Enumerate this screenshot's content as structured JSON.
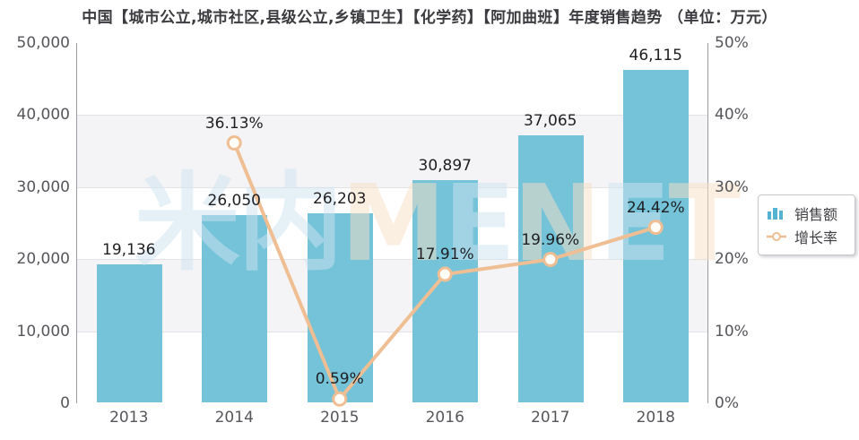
{
  "title": "中国【城市公立,城市社区,县级公立,乡镇卫生】【化学药】【阿加曲班】年度销售趋势 （单位：万元）",
  "colors": {
    "bar": "#74c3d9",
    "line": "#efbe93",
    "marker_fill": "#fffdf8",
    "band": "#f4f4f6",
    "grid_line": "#e3e3e7",
    "plot_border": "#9a9ba3",
    "watermark_blue": "#cfe3f1",
    "watermark_orange": "#f9e0c6",
    "legend_icon_blue": "#54b2d3"
  },
  "legend": {
    "items": [
      {
        "label": "销售额",
        "type": "bar"
      },
      {
        "label": "增长率",
        "type": "line"
      }
    ]
  },
  "chart_data": {
    "type": "bar+line combo",
    "title": "中国【城市公立,城市社区,县级公立,乡镇卫生】【化学药】【阿加曲班】年度销售趋势 （单位：万元）",
    "categories": [
      "2013",
      "2014",
      "2015",
      "2016",
      "2017",
      "2018"
    ],
    "series": [
      {
        "name": "销售额",
        "type": "bar",
        "axis": "left",
        "values": [
          19136,
          26050,
          26203,
          30897,
          37065,
          46115
        ],
        "labels": [
          "19,136",
          "26,050",
          "26,203",
          "30,897",
          "37,065",
          "46,115"
        ]
      },
      {
        "name": "增长率",
        "type": "line",
        "axis": "right",
        "values": [
          null,
          36.13,
          0.59,
          17.91,
          19.96,
          24.42
        ],
        "labels": [
          null,
          "36.13%",
          "0.59%",
          "17.91%",
          "19.96%",
          "24.42%"
        ]
      }
    ],
    "left_axis": {
      "min": 0,
      "max": 50000,
      "tick_labels": [
        "50,000",
        "40,000",
        "30,000",
        "20,000",
        "10,000",
        "0"
      ]
    },
    "right_axis": {
      "min": 0,
      "max": 50,
      "tick_labels": [
        "50%",
        "40%",
        "30%",
        "20%",
        "10%",
        "0%"
      ]
    },
    "grid": "alternating horizontal bands",
    "legend_position": "middle-right",
    "watermark": "米内MENET"
  }
}
